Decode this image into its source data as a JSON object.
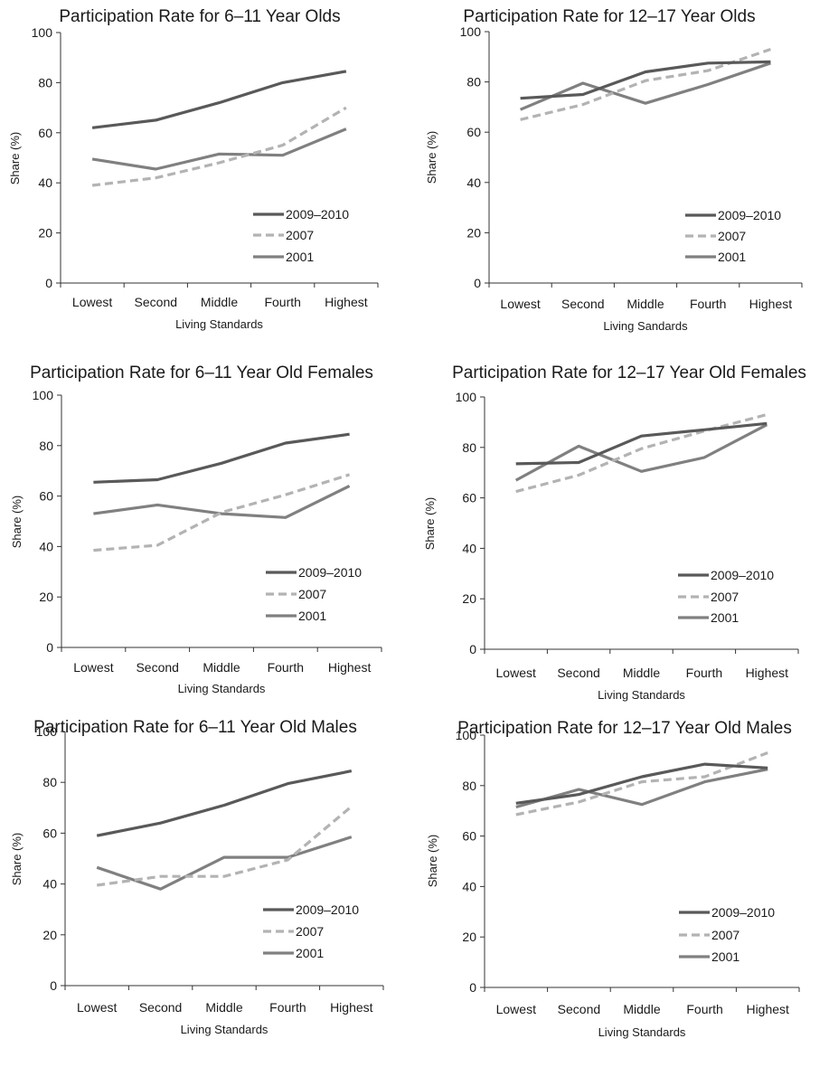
{
  "chart_data": [
    {
      "type": "line",
      "title": "Participation Rate for 6–11 Year Olds",
      "xlabel": "Living Standards",
      "ylabel": "Share (%)",
      "categories": [
        "Lowest",
        "Second",
        "Middle",
        "Fourth",
        "Highest"
      ],
      "ylim": [
        0,
        100
      ],
      "yticks": [
        0,
        20,
        40,
        60,
        80,
        100
      ],
      "grid": false,
      "legend": "bottom-right",
      "series": [
        {
          "name": "2009–2010",
          "values": [
            62,
            65,
            72,
            80,
            84.5
          ],
          "color": "#595959",
          "style": "solid"
        },
        {
          "name": "2007",
          "values": [
            39,
            42,
            48,
            55,
            70
          ],
          "color": "#b3b3b3",
          "style": "dashed"
        },
        {
          "name": "2001",
          "values": [
            49.5,
            45.5,
            51.5,
            51,
            61.5
          ],
          "color": "#808080",
          "style": "solid"
        }
      ]
    },
    {
      "type": "line",
      "title": "Participation Rate for 12–17 Year Olds",
      "xlabel": "Living Sandards",
      "ylabel": "Share (%)",
      "categories": [
        "Lowest",
        "Second",
        "Middle",
        "Fourth",
        "Highest"
      ],
      "ylim": [
        0,
        100
      ],
      "yticks": [
        0,
        20,
        40,
        60,
        80,
        100
      ],
      "grid": false,
      "legend": "bottom-right",
      "series": [
        {
          "name": "2009–2010",
          "values": [
            73.5,
            75,
            84,
            87.5,
            88
          ],
          "color": "#595959",
          "style": "solid"
        },
        {
          "name": "2007",
          "values": [
            65,
            71,
            80.5,
            84.5,
            93
          ],
          "color": "#b3b3b3",
          "style": "dashed"
        },
        {
          "name": "2001",
          "values": [
            69,
            79.5,
            71.5,
            79,
            87.5
          ],
          "color": "#808080",
          "style": "solid"
        }
      ]
    },
    {
      "type": "line",
      "title": "Participation Rate for 6–11 Year Old Females",
      "xlabel": "Living Standards",
      "ylabel": "Share (%)",
      "categories": [
        "Lowest",
        "Second",
        "Middle",
        "Fourth",
        "Highest"
      ],
      "ylim": [
        0,
        100
      ],
      "yticks": [
        0,
        20,
        40,
        60,
        80,
        100
      ],
      "grid": false,
      "legend": "bottom-right",
      "series": [
        {
          "name": "2009–2010",
          "values": [
            65.5,
            66.5,
            73,
            81,
            84.5
          ],
          "color": "#595959",
          "style": "solid"
        },
        {
          "name": "2007",
          "values": [
            38.5,
            40.5,
            53.5,
            60.5,
            68.5
          ],
          "color": "#b3b3b3",
          "style": "dashed"
        },
        {
          "name": "2001",
          "values": [
            53,
            56.5,
            53,
            51.5,
            64
          ],
          "color": "#808080",
          "style": "solid"
        }
      ]
    },
    {
      "type": "line",
      "title": "Participation Rate for 12–17 Year Old Females",
      "xlabel": "Living Standards",
      "ylabel": "Share (%)",
      "categories": [
        "Lowest",
        "Second",
        "Middle",
        "Fourth",
        "Highest"
      ],
      "ylim": [
        0,
        100
      ],
      "yticks": [
        0,
        20,
        40,
        60,
        80,
        100
      ],
      "grid": false,
      "legend": "bottom-right",
      "series": [
        {
          "name": "2009–2010",
          "values": [
            73.5,
            74,
            84.5,
            87,
            89.5
          ],
          "color": "#595959",
          "style": "solid"
        },
        {
          "name": "2007",
          "values": [
            62.5,
            69,
            79.5,
            86.5,
            93
          ],
          "color": "#b3b3b3",
          "style": "dashed"
        },
        {
          "name": "2001",
          "values": [
            67,
            80.5,
            70.5,
            76,
            89
          ],
          "color": "#808080",
          "style": "solid"
        }
      ]
    },
    {
      "type": "line",
      "title": "Participation Rate for 6–11 Year Old Males",
      "xlabel": "Living Standards",
      "ylabel": "Share (%)",
      "categories": [
        "Lowest",
        "Second",
        "Middle",
        "Fourth",
        "Highest"
      ],
      "ylim": [
        0,
        100
      ],
      "yticks": [
        0,
        20,
        40,
        60,
        80,
        100
      ],
      "grid": false,
      "legend": "bottom-right",
      "series": [
        {
          "name": "2009–2010",
          "values": [
            59,
            64,
            71,
            79.5,
            84.5
          ],
          "color": "#595959",
          "style": "solid"
        },
        {
          "name": "2007",
          "values": [
            39.5,
            43,
            43,
            49.5,
            70.5
          ],
          "color": "#b3b3b3",
          "style": "dashed"
        },
        {
          "name": "2001",
          "values": [
            46.5,
            38,
            50.5,
            50.5,
            58.5
          ],
          "color": "#808080",
          "style": "solid"
        }
      ]
    },
    {
      "type": "line",
      "title": "Participation Rate for 12–17 Year Old Males",
      "xlabel": "Living Standards",
      "ylabel": "Share (%)",
      "categories": [
        "Lowest",
        "Second",
        "Middle",
        "Fourth",
        "Highest"
      ],
      "ylim": [
        0,
        100
      ],
      "yticks": [
        0,
        20,
        40,
        60,
        80,
        100
      ],
      "grid": false,
      "legend": "bottom-right",
      "series": [
        {
          "name": "2009–2010",
          "values": [
            73,
            76.5,
            83.5,
            88.5,
            87
          ],
          "color": "#595959",
          "style": "solid"
        },
        {
          "name": "2007",
          "values": [
            68.5,
            73.5,
            81.5,
            83.5,
            93
          ],
          "color": "#b3b3b3",
          "style": "dashed"
        },
        {
          "name": "2001",
          "values": [
            71.5,
            78.5,
            72.5,
            81.5,
            86.5
          ],
          "color": "#808080",
          "style": "solid"
        }
      ]
    }
  ]
}
